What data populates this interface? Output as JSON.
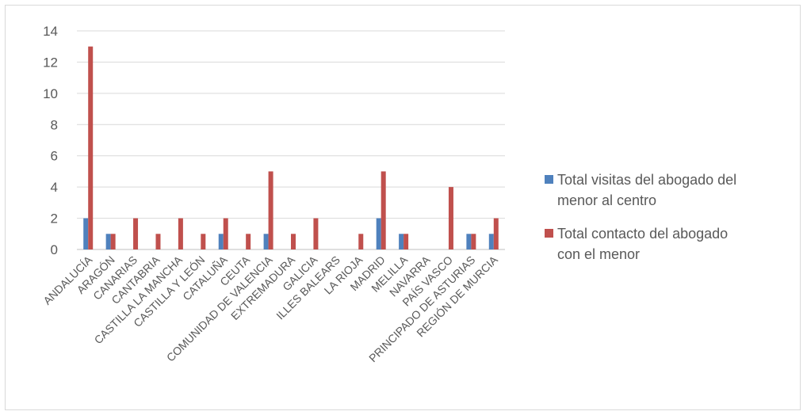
{
  "chart_data": {
    "type": "bar",
    "title": "",
    "xlabel": "",
    "ylabel": "",
    "ylim": [
      0,
      14
    ],
    "yticks": [
      0,
      2,
      4,
      6,
      8,
      10,
      12,
      14
    ],
    "grid": true,
    "legend_position": "right",
    "categories": [
      "ANDALUCÍA",
      "ARAGÓN",
      "CANARIAS",
      "CANTABRIA",
      "CASTILLA LA MANCHA",
      "CASTILLA Y LEÓN",
      "CATALUÑA",
      "CEUTA",
      "COMUNIDAD DE VALENCIA",
      "EXTREMADURA",
      "GALICIA",
      "ILLES BALEARS",
      "LA RIOJA",
      "MADRID",
      "MELILLA",
      "NAVARRA",
      "PAÍS VASCO",
      "PRINCIPADO DE ASTURIAS",
      "REGIÓN DE MURCIA"
    ],
    "series": [
      {
        "name": "Total visitas del abogado del menor al centro",
        "color": "#4f81bd",
        "values": [
          2,
          1,
          0,
          0,
          0,
          0,
          1,
          0,
          1,
          0,
          0,
          0,
          0,
          2,
          1,
          0,
          0,
          1,
          1
        ]
      },
      {
        "name": "Total contacto del abogado con el menor",
        "color": "#c0504d",
        "values": [
          13,
          1,
          2,
          1,
          2,
          1,
          2,
          1,
          5,
          1,
          2,
          0,
          1,
          5,
          1,
          0,
          4,
          1,
          2
        ]
      }
    ]
  },
  "legend": {
    "items": [
      {
        "line1": "Total visitas del abogado del",
        "line2": "menor al centro",
        "color": "#4f81bd"
      },
      {
        "line1": "Total contacto del abogado",
        "line2": "con el menor",
        "color": "#c0504d"
      }
    ]
  }
}
